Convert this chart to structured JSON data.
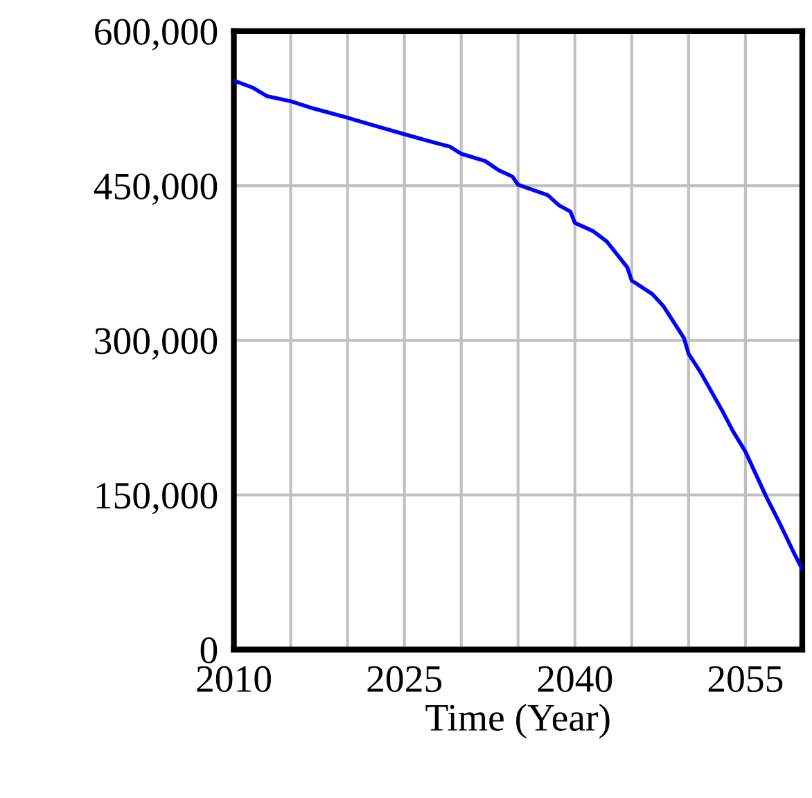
{
  "chart_data": {
    "type": "line",
    "xlabel": "Time (Year)",
    "x": [
      2010,
      2011.7,
      2012.9,
      2015,
      2017,
      2020,
      2022.8,
      2025,
      2027.6,
      2029,
      2030,
      2032.1,
      2033.3,
      2034.5,
      2035,
      2037.6,
      2038.6,
      2039.6,
      2040,
      2041.6,
      2042.8,
      2044.6,
      2045,
      2046.8,
      2047.8,
      2049.6,
      2050,
      2051,
      2052.9,
      2053.9,
      2055,
      2056.8,
      2058,
      2059.3,
      2060
    ],
    "series": [
      {
        "color": "#0000ff",
        "values": [
          552000,
          545000,
          537000,
          532000,
          525000,
          516000,
          507000,
          500000,
          492000,
          488000,
          481000,
          474000,
          465000,
          459000,
          451000,
          441000,
          431000,
          425000,
          414000,
          406000,
          396000,
          371000,
          358000,
          345000,
          333000,
          302000,
          287000,
          270000,
          233000,
          212000,
          192000,
          149000,
          123000,
          93000,
          78000
        ]
      }
    ],
    "xlim": [
      2010,
      2060
    ],
    "xticks": [
      2010,
      {
        "value": 2015,
        "label": null
      },
      {
        "value": 2020,
        "label": null
      },
      2025,
      {
        "value": 2030,
        "label": null
      },
      {
        "value": 2035,
        "label": null
      },
      2040,
      {
        "value": 2045,
        "label": null
      },
      {
        "value": 2050,
        "label": null
      },
      2055,
      {
        "value": 2060,
        "label": null
      }
    ],
    "ylim": [
      0,
      600000
    ],
    "yticks": [
      {
        "value": 0,
        "label": "0"
      },
      {
        "value": 150000,
        "label": "150,000"
      },
      {
        "value": 300000,
        "label": "300,000"
      },
      {
        "value": 450000,
        "label": "450,000"
      },
      {
        "value": 600000,
        "label": "600,000"
      }
    ],
    "grid": true,
    "line_style": "solid",
    "marker": "none"
  }
}
